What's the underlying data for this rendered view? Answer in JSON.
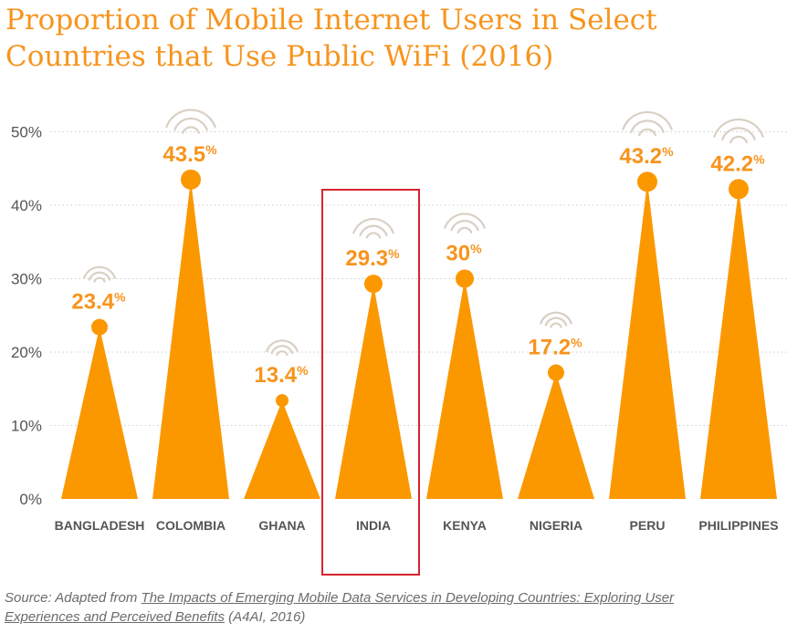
{
  "title_line1": "Proportion of Mobile Internet Users in Select",
  "title_line2": "Countries that Use Public WiFi (2016)",
  "source": {
    "prefix": "Source: Adapted from ",
    "ref_line1": "The Impacts of Emerging Mobile Data Services in Developing Countries: Exploring User",
    "ref_line2": "Experiences and Perceived Benefits",
    "suffix": " (A4AI, 2016)"
  },
  "colors": {
    "accent": "#f7941d",
    "bar": "#fb9800",
    "wifi": "#d8d0c4",
    "highlight": "#d9232e",
    "grid": "#cccccc",
    "axis_text": "#555555"
  },
  "chart_data": {
    "type": "bar",
    "categories": [
      "BANGLADESH",
      "COLOMBIA",
      "GHANA",
      "INDIA",
      "KENYA",
      "NIGERIA",
      "PERU",
      "PHILIPPINES"
    ],
    "values": [
      23.4,
      43.5,
      13.4,
      29.3,
      30,
      17.2,
      43.2,
      42.2
    ],
    "value_labels": [
      "23.4",
      "43.5",
      "13.4",
      "29.3",
      "30",
      "17.2",
      "43.2",
      "42.2"
    ],
    "value_suffix": "%",
    "y_ticks": [
      "0%",
      "10%",
      "20%",
      "30%",
      "40%",
      "50%"
    ],
    "ylim": [
      0,
      50
    ],
    "grid": true,
    "highlighted_category": "INDIA",
    "xlabel": "",
    "ylabel": ""
  }
}
